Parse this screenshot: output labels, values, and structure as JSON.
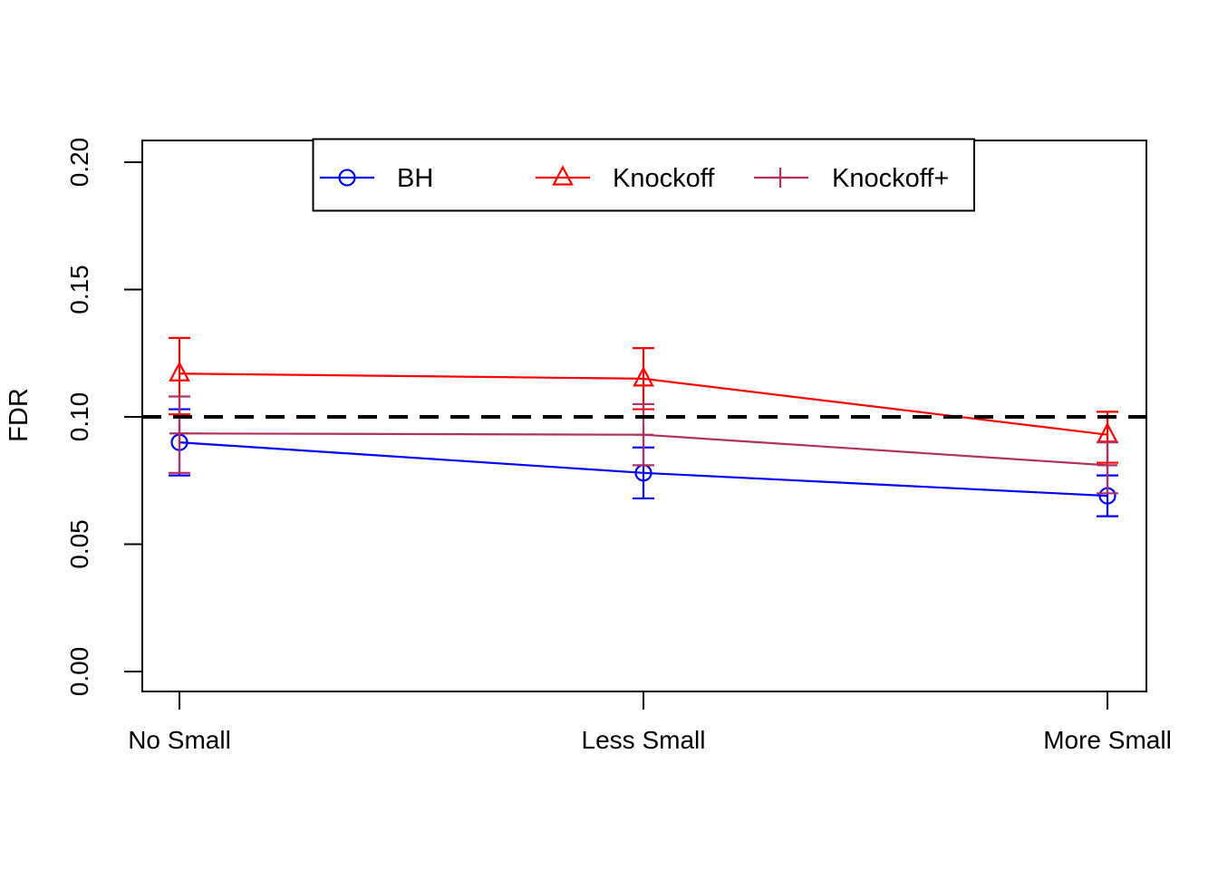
{
  "chart_data": {
    "type": "line",
    "title": "",
    "xlabel": "",
    "ylabel": "FDR",
    "categories": [
      "No Small",
      "Less Small",
      "More Small"
    ],
    "y_ticks": [
      "0.00",
      "0.05",
      "0.10",
      "0.15",
      "0.20"
    ],
    "y_tick_values": [
      0.0,
      0.05,
      0.1,
      0.15,
      0.2
    ],
    "ylim": [
      -0.008,
      0.209
    ],
    "grid": false,
    "legend_position": "top-center-inside",
    "reference_line": {
      "value": 0.1,
      "style": "dashed",
      "color": "#000000"
    },
    "series": [
      {
        "name": "BH",
        "color": "#0000FF",
        "marker": "circle",
        "values": [
          0.09,
          0.078,
          0.069
        ],
        "ci_low": [
          0.077,
          0.068,
          0.061
        ],
        "ci_high": [
          0.103,
          0.088,
          0.077
        ]
      },
      {
        "name": "Knockoff",
        "color": "#FF0000",
        "marker": "triangle",
        "values": [
          0.117,
          0.115,
          0.093
        ],
        "ci_low": [
          0.101,
          0.103,
          0.082
        ],
        "ci_high": [
          0.131,
          0.127,
          0.102
        ]
      },
      {
        "name": "Knockoff+",
        "color": "#B03060",
        "marker": "plus",
        "values": [
          0.0935,
          0.093,
          0.081
        ],
        "ci_low": [
          0.078,
          0.081,
          0.07
        ],
        "ci_high": [
          0.108,
          0.105,
          0.09
        ]
      }
    ]
  }
}
